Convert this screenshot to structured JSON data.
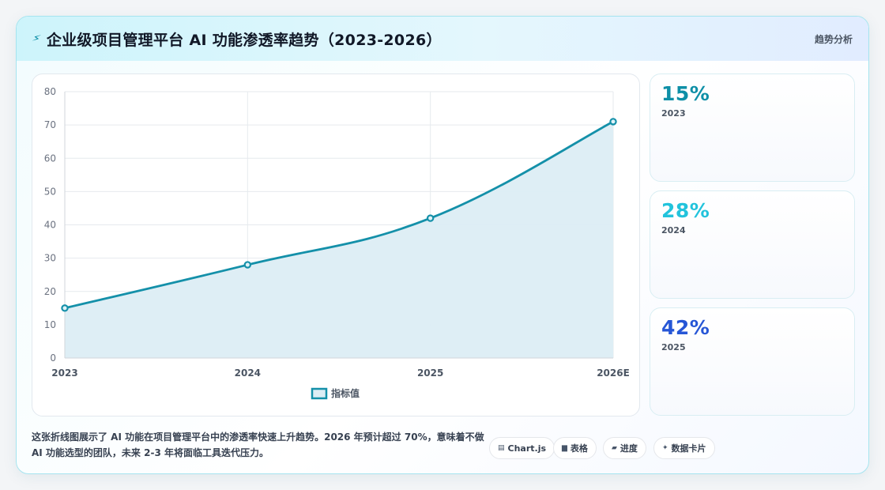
{
  "header": {
    "icon": "lightning-icon",
    "title": "企业级项目管理平台 AI 功能渗透率趋势（2023-2026）",
    "tag": "趋势分析"
  },
  "chart_data": {
    "type": "line",
    "categories": [
      "2023",
      "2024",
      "2025",
      "2026E"
    ],
    "series": [
      {
        "name": "指标值",
        "values": [
          15,
          28,
          42,
          71
        ]
      }
    ],
    "title": "",
    "xlabel": "",
    "ylabel": "",
    "ylim": [
      0,
      80
    ],
    "yticks": [
      0,
      10,
      20,
      30,
      40,
      50,
      60,
      70,
      80
    ],
    "grid": true,
    "area_fill": true,
    "legend": "bottom-center",
    "colors": {
      "line": "#1490a9",
      "fill": "#dcedf4"
    }
  },
  "stats": [
    {
      "value": "15%",
      "label": "2023",
      "color": "#0e8fa7"
    },
    {
      "value": "28%",
      "label": "2024",
      "color": "#22c3dc"
    },
    {
      "value": "42%",
      "label": "2025",
      "color": "#2656d6"
    }
  ],
  "description": "这张折线图展示了 AI 功能在项目管理平台中的渗透率快速上升趋势。2026 年预计超过 70%，意味着不做 AI 功能选型的团队，未来 2-3 年将面临工具迭代压力。",
  "buttons": [
    {
      "icon": "chart-icon",
      "label": "Chart.js"
    },
    {
      "icon": "table-icon",
      "label": "表格"
    },
    {
      "icon": "progress-icon",
      "label": "进度"
    },
    {
      "icon": "sparkle-icon",
      "label": "数据卡片"
    }
  ]
}
